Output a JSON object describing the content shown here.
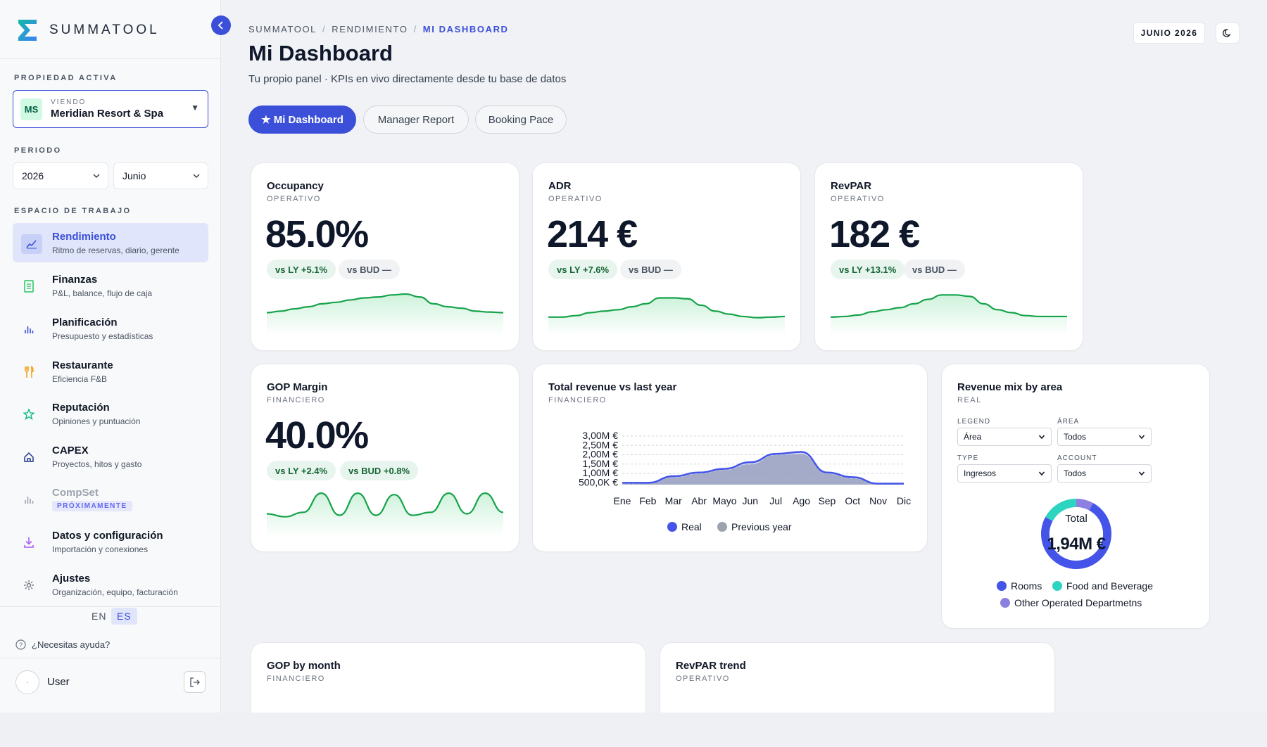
{
  "app": {
    "logo_text": "SUMMATOOL"
  },
  "sidebar": {
    "active_property_label": "PROPIEDAD ACTIVA",
    "property": {
      "initials": "MS",
      "viewing_label": "VIENDO",
      "name": "Meridian Resort & Spa"
    },
    "period_label": "PERIODO",
    "year": "2026",
    "month": "Junio",
    "workspace_label": "ESPACIO DE TRABAJO",
    "items": [
      {
        "title": "Rendimiento",
        "subtitle": "Ritmo de reservas, diario, gerente",
        "icon": "trend-icon",
        "color": "#3b4fd8"
      },
      {
        "title": "Finanzas",
        "subtitle": "P&L, balance, flujo de caja",
        "icon": "document-icon",
        "color": "#22c55e"
      },
      {
        "title": "Planificación",
        "subtitle": "Presupuesto y estadísticas",
        "icon": "bar-chart-icon",
        "color": "#3b4fd8"
      },
      {
        "title": "Restaurante",
        "subtitle": "Eficiencia F&B",
        "icon": "fork-knife-icon",
        "color": "#f59e0b"
      },
      {
        "title": "Reputación",
        "subtitle": "Opiniones y puntuación",
        "icon": "star-icon",
        "color": "#10b981"
      },
      {
        "title": "CAPEX",
        "subtitle": "Proyectos, hitos y gasto",
        "icon": "home-icon",
        "color": "#1e3a8a"
      },
      {
        "title": "CompSet",
        "badge": "PRÓXIMAMENTE",
        "icon": "bar-chart-icon",
        "color": "#9ca3af"
      },
      {
        "title": "Datos y configuración",
        "subtitle": "Importación y conexiones",
        "icon": "download-icon",
        "color": "#a855f7"
      },
      {
        "title": "Ajustes",
        "subtitle": "Organización, equipo, facturación",
        "icon": "gear-icon",
        "color": "#6b7280"
      }
    ],
    "lang_en": "EN",
    "lang_es": "ES",
    "help": "¿Necesitas ayuda?",
    "user": "User",
    "avatar_char": "·"
  },
  "header": {
    "crumbs": [
      "SUMMATOOL",
      "RENDIMIENTO",
      "MI DASHBOARD"
    ],
    "title": "Mi Dashboard",
    "subtitle": "Tu propio panel · KPIs en vivo directamente desde tu base de datos",
    "date": "JUNIO 2026",
    "tabs": [
      "★ Mi Dashboard",
      "Manager Report",
      "Booking Pace"
    ]
  },
  "kpis": [
    {
      "title": "Occupancy",
      "category": "OPERATIVO",
      "value": "85.0%",
      "vs_ly": "vs LY +5.1%",
      "vs_bud": "vs BUD —",
      "spark": [
        0.25,
        0.3,
        0.38,
        0.45,
        0.55,
        0.6,
        0.68,
        0.75,
        0.78,
        0.85,
        0.88,
        0.78,
        0.55,
        0.45,
        0.4,
        0.3,
        0.27,
        0.25
      ]
    },
    {
      "title": "ADR",
      "category": "OPERATIVO",
      "value": "214 €",
      "vs_ly": "vs LY +7.6%",
      "vs_bud": "vs BUD —",
      "spark": [
        0.1,
        0.1,
        0.15,
        0.25,
        0.3,
        0.35,
        0.45,
        0.55,
        0.75,
        0.75,
        0.72,
        0.5,
        0.3,
        0.2,
        0.12,
        0.08,
        0.1,
        0.12
      ]
    },
    {
      "title": "RevPAR",
      "category": "OPERATIVO",
      "value": "182 €",
      "vs_ly": "vs LY +13.1%",
      "vs_bud": "vs BUD —",
      "spark": [
        0.1,
        0.12,
        0.17,
        0.28,
        0.35,
        0.42,
        0.55,
        0.7,
        0.85,
        0.85,
        0.8,
        0.55,
        0.35,
        0.25,
        0.15,
        0.12,
        0.12,
        0.12
      ]
    },
    {
      "title": "GOP Margin",
      "category": "FINANCIERO",
      "value": "40.0%",
      "vs_ly": "vs LY +2.4%",
      "vs_bud": "vs BUD +0.8%",
      "spark": [
        0.25,
        0.15,
        0.3,
        0.95,
        0.2,
        0.95,
        0.2,
        0.9,
        0.2,
        0.3,
        0.95,
        0.25,
        0.95,
        0.3
      ]
    }
  ],
  "revenue_chart": {
    "title": "Total revenue vs last year",
    "category": "FINANCIERO",
    "legend_real": "Real",
    "legend_prev": "Previous year",
    "chart_data": {
      "type": "area",
      "categories": [
        "Ene",
        "Feb",
        "Mar",
        "Abr",
        "Mayo",
        "Jun",
        "Jul",
        "Ago",
        "Sep",
        "Oct",
        "Nov",
        "Dic"
      ],
      "y_ticks": [
        "3,00M €",
        "2,50M €",
        "2,00M €",
        "1,50M €",
        "1,00M €",
        "500,0K €"
      ],
      "ylim": [
        0,
        3000000
      ],
      "series": [
        {
          "name": "Real",
          "values": [
            500000,
            500000,
            850000,
            1050000,
            1250000,
            1600000,
            2050000,
            2150000,
            1050000,
            800000,
            450000,
            450000
          ],
          "color": "#4454e8"
        },
        {
          "name": "Previous year",
          "values": [
            450000,
            480000,
            800000,
            1000000,
            1200000,
            1500000,
            2000000,
            2050000,
            1000000,
            750000,
            420000,
            430000
          ],
          "color": "#9ca3af"
        }
      ]
    }
  },
  "revenue_mix": {
    "title": "Revenue mix by area",
    "category": "REAL",
    "legend_label": "LEGEND",
    "legend_value": "Área",
    "area_label": "ÁREA",
    "area_value": "Todos",
    "type_label": "TYPE",
    "type_value": "Ingresos",
    "account_label": "ACCOUNT",
    "account_value": "Todos",
    "total_label": "Total",
    "total_value": "1,94M €",
    "chart_data": {
      "type": "pie",
      "categories": [
        "Rooms",
        "Food and Beverage",
        "Other Operated Departmetns"
      ],
      "values": [
        75,
        17,
        8
      ],
      "colors": [
        "#4454e8",
        "#2dd4bf",
        "#8b7fe0"
      ]
    }
  },
  "bottom_cards": [
    {
      "title": "GOP by month",
      "category": "FINANCIERO"
    },
    {
      "title": "RevPAR trend",
      "category": "OPERATIVO"
    }
  ]
}
